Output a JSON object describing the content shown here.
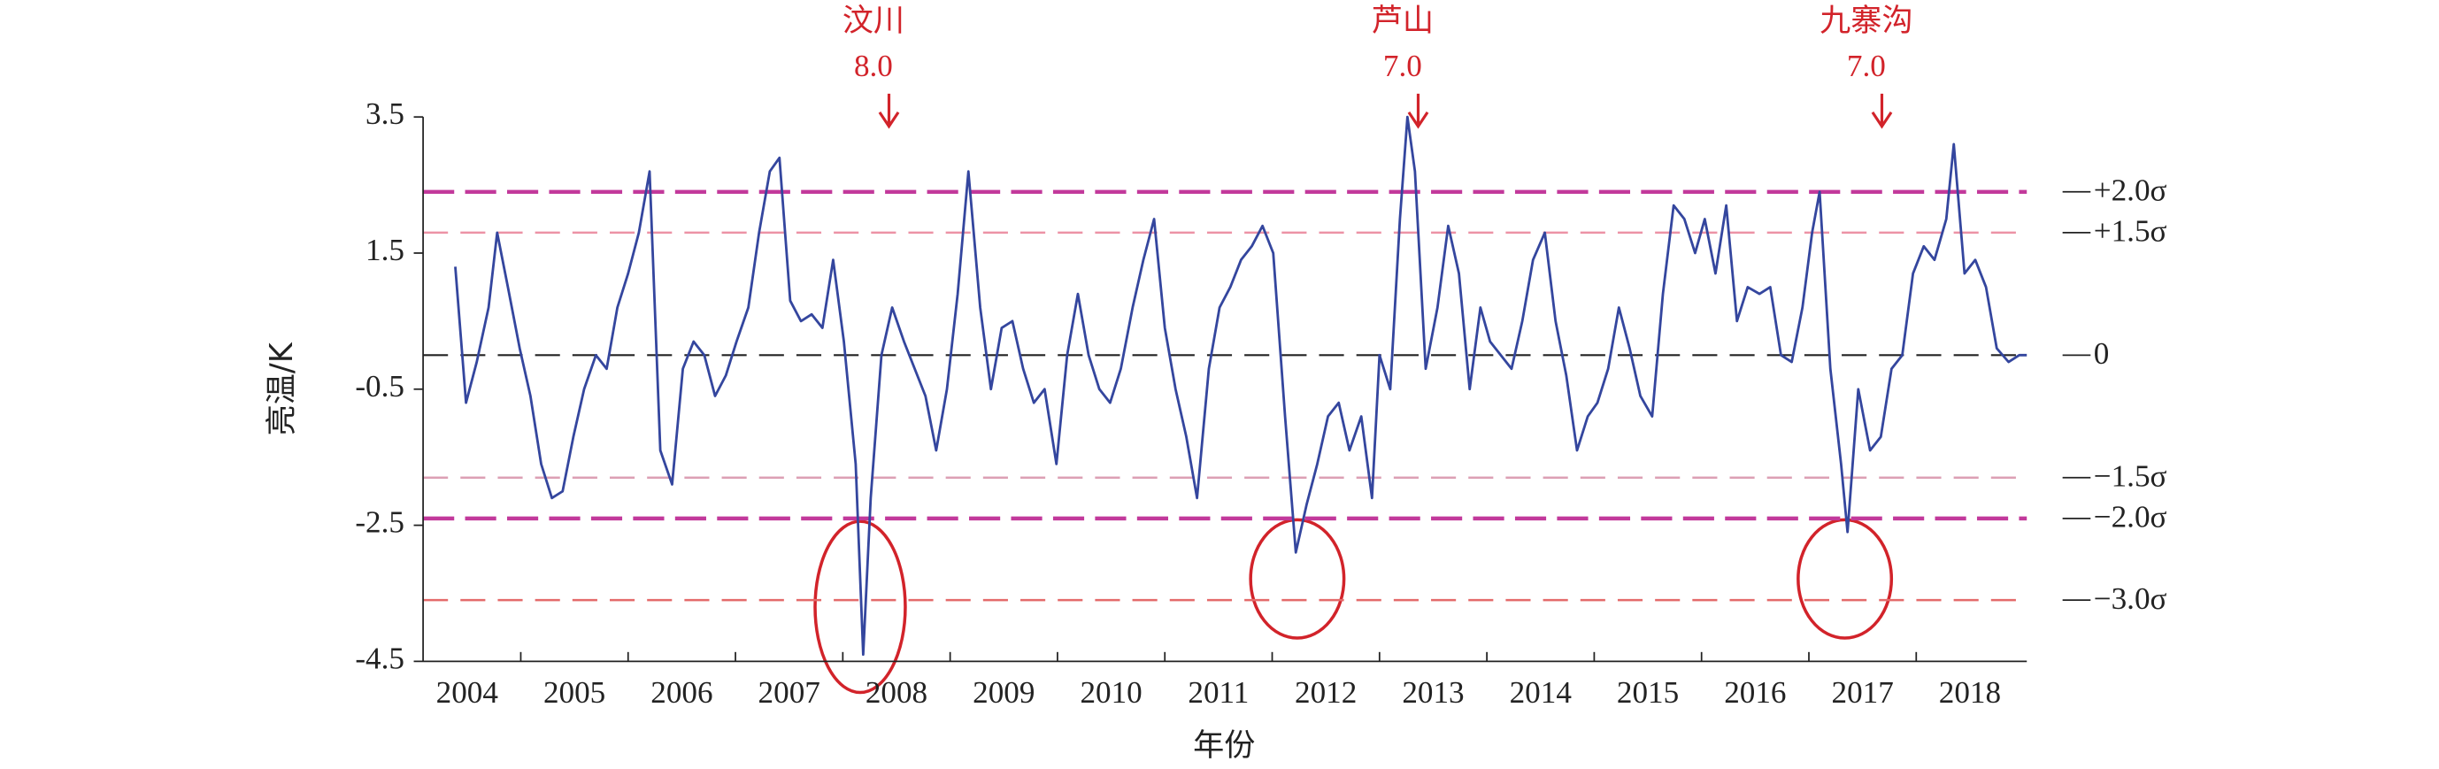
{
  "chart_data": {
    "type": "line",
    "xlabel": "年份",
    "ylabel": "亮温/K",
    "xlim": [
      2004.09,
      2019.03
    ],
    "ylim": [
      -4.5,
      3.5
    ],
    "yticks": [
      -4.5,
      -2.5,
      -0.5,
      1.5,
      3.5
    ],
    "xticks": [
      {
        "value": 2004.5,
        "label": "2004"
      },
      {
        "value": 2005.5,
        "label": "2005"
      },
      {
        "value": 2006.5,
        "label": "2006"
      },
      {
        "value": 2007.5,
        "label": "2007"
      },
      {
        "value": 2008.5,
        "label": "2008"
      },
      {
        "value": 2009.5,
        "label": "2009"
      },
      {
        "value": 2010.5,
        "label": "2010"
      },
      {
        "value": 2011.5,
        "label": "2011"
      },
      {
        "value": 2012.5,
        "label": "2012"
      },
      {
        "value": 2013.5,
        "label": "2013"
      },
      {
        "value": 2014.5,
        "label": "2014"
      },
      {
        "value": 2015.5,
        "label": "2015"
      },
      {
        "value": 2016.5,
        "label": "2016"
      },
      {
        "value": 2017.5,
        "label": "2017"
      },
      {
        "value": 2018.5,
        "label": "2018"
      }
    ],
    "xminorticks": [
      2005,
      2006,
      2007,
      2008,
      2009,
      2010,
      2011,
      2012,
      2013,
      2014,
      2015,
      2016,
      2017,
      2018
    ],
    "reference_lines": [
      {
        "value": 2.4,
        "label": "+2.0σ",
        "color": "#c2399b"
      },
      {
        "value": 1.8,
        "label": "+1.5σ",
        "color": "#ec93a6"
      },
      {
        "value": 0,
        "label": "0",
        "color": "#222222"
      },
      {
        "value": -1.8,
        "label": "−1.5σ",
        "color": "#dca0b4"
      },
      {
        "value": -2.4,
        "label": "−2.0σ",
        "color": "#c2399b"
      },
      {
        "value": -3.6,
        "label": "−3.0σ",
        "color": "#e46a6a"
      }
    ],
    "events": [
      {
        "x": 2008.43,
        "name": "汶川",
        "magnitude": "8.0"
      },
      {
        "x": 2013.36,
        "name": "芦山",
        "magnitude": "7.0"
      },
      {
        "x": 2017.68,
        "name": "九寨沟",
        "magnitude": "7.0"
      }
    ],
    "series": [
      {
        "color": "#34469e",
        "x": [
          2004.39,
          2004.49,
          2004.59,
          2004.7,
          2004.78,
          2004.88,
          2004.99,
          2005.09,
          2005.19,
          2005.29,
          2005.39,
          2005.49,
          2005.59,
          2005.7,
          2005.8,
          2005.9,
          2006.0,
          2006.1,
          2006.2,
          2006.3,
          2006.41,
          2006.51,
          2006.61,
          2006.71,
          2006.81,
          2006.91,
          2007.01,
          2007.12,
          2007.22,
          2007.32,
          2007.41,
          2007.51,
          2007.61,
          2007.71,
          2007.81,
          2007.91,
          2008.01,
          2008.12,
          2008.19,
          2008.26,
          2008.36,
          2008.46,
          2008.57,
          2008.67,
          2008.77,
          2008.87,
          2008.97,
          2009.07,
          2009.17,
          2009.28,
          2009.38,
          2009.48,
          2009.58,
          2009.68,
          2009.78,
          2009.88,
          2009.99,
          2010.09,
          2010.19,
          2010.29,
          2010.39,
          2010.49,
          2010.59,
          2010.7,
          2010.8,
          2010.9,
          2011.0,
          2011.1,
          2011.2,
          2011.3,
          2011.41,
          2011.51,
          2011.61,
          2011.71,
          2011.81,
          2011.91,
          2012.01,
          2012.12,
          2012.22,
          2012.32,
          2012.42,
          2012.52,
          2012.62,
          2012.72,
          2012.83,
          2012.93,
          2013.0,
          2013.1,
          2013.19,
          2013.26,
          2013.33,
          2013.43,
          2013.54,
          2013.64,
          2013.74,
          2013.84,
          2013.94,
          2014.03,
          2014.13,
          2014.23,
          2014.33,
          2014.43,
          2014.54,
          2014.64,
          2014.74,
          2014.84,
          2014.94,
          2015.03,
          2015.13,
          2015.23,
          2015.33,
          2015.43,
          2015.54,
          2015.64,
          2015.74,
          2015.84,
          2015.94,
          2016.03,
          2016.13,
          2016.23,
          2016.33,
          2016.43,
          2016.54,
          2016.64,
          2016.74,
          2016.84,
          2016.94,
          2017.03,
          2017.1,
          2017.2,
          2017.3,
          2017.36,
          2017.46,
          2017.57,
          2017.67,
          2017.77,
          2017.87,
          2017.97,
          2018.07,
          2018.17,
          2018.28,
          2018.35,
          2018.45,
          2018.55,
          2018.65,
          2018.75,
          2018.86,
          2018.96,
          2019.03
        ],
        "values": [
          1.3,
          -0.7,
          -0.1,
          0.7,
          1.8,
          1.0,
          0.1,
          -0.6,
          -1.6,
          -2.1,
          -2.0,
          -1.2,
          -0.5,
          0.0,
          -0.2,
          0.7,
          1.2,
          1.8,
          2.7,
          -1.4,
          -1.9,
          -0.2,
          0.2,
          0.0,
          -0.6,
          -0.3,
          0.2,
          0.7,
          1.8,
          2.7,
          2.9,
          0.8,
          0.5,
          0.6,
          0.4,
          1.4,
          0.2,
          -1.6,
          -4.4,
          -2.1,
          0.0,
          0.7,
          0.2,
          -0.2,
          -0.6,
          -1.4,
          -0.5,
          0.9,
          2.7,
          0.7,
          -0.5,
          0.4,
          0.5,
          -0.2,
          -0.7,
          -0.5,
          -1.6,
          0.0,
          0.9,
          0.0,
          -0.5,
          -0.7,
          -0.2,
          0.7,
          1.4,
          2.0,
          0.4,
          -0.5,
          -1.2,
          -2.1,
          -0.2,
          0.7,
          1.0,
          1.4,
          1.6,
          1.9,
          1.5,
          -0.9,
          -2.9,
          -2.2,
          -1.6,
          -0.9,
          -0.7,
          -1.4,
          -0.9,
          -2.1,
          0.0,
          -0.5,
          2.0,
          3.5,
          2.7,
          -0.2,
          0.7,
          1.9,
          1.2,
          -0.5,
          0.7,
          0.2,
          0.0,
          -0.2,
          0.5,
          1.4,
          1.8,
          0.5,
          -0.3,
          -1.4,
          -0.9,
          -0.7,
          -0.2,
          0.7,
          0.1,
          -0.6,
          -0.9,
          0.9,
          2.2,
          2.0,
          1.5,
          2.0,
          1.2,
          2.2,
          0.5,
          1.0,
          0.9,
          1.0,
          0.0,
          -0.1,
          0.7,
          1.8,
          2.4,
          -0.2,
          -1.6,
          -2.6,
          -0.5,
          -1.4,
          -1.2,
          -0.2,
          0.0,
          1.2,
          1.6,
          1.4,
          2.0,
          3.1,
          1.2,
          1.4,
          1.0,
          0.1,
          -0.1,
          0.0,
          0.0
        ]
      }
    ]
  }
}
